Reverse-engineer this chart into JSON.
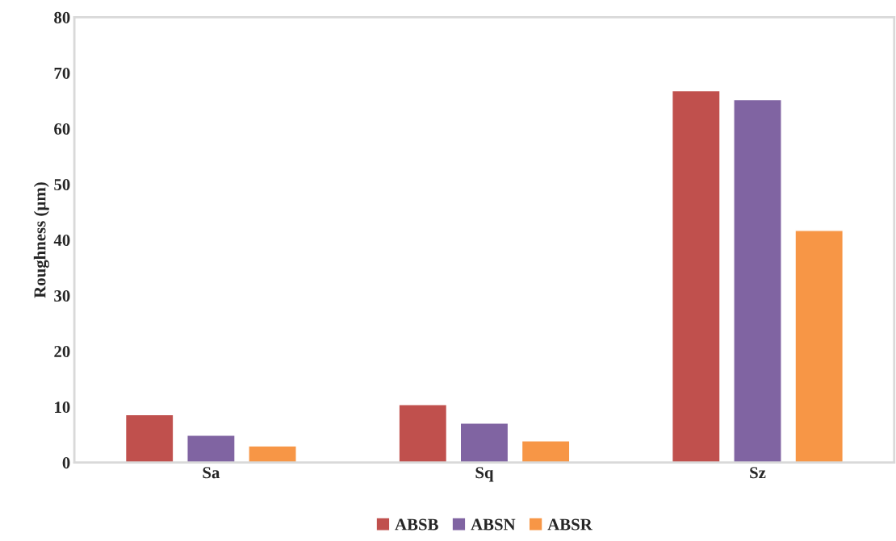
{
  "chart_data": {
    "type": "bar",
    "ylabel": "Roughness (µm)",
    "categories": [
      "Sa",
      "Sq",
      "Sz"
    ],
    "series": [
      {
        "name": "ABSB",
        "color": "#c0504d",
        "values": [
          8.6,
          10.4,
          66.8
        ]
      },
      {
        "name": "ABSN",
        "color": "#8064a2",
        "values": [
          4.9,
          7.1,
          65.2
        ]
      },
      {
        "name": "ABSR",
        "color": "#f79646",
        "values": [
          3.0,
          3.9,
          41.7
        ]
      }
    ],
    "ylim": [
      0,
      80
    ],
    "yticks": [
      0,
      10,
      20,
      30,
      40,
      50,
      60,
      70,
      80
    ],
    "grid": false,
    "legend": "bottom"
  }
}
